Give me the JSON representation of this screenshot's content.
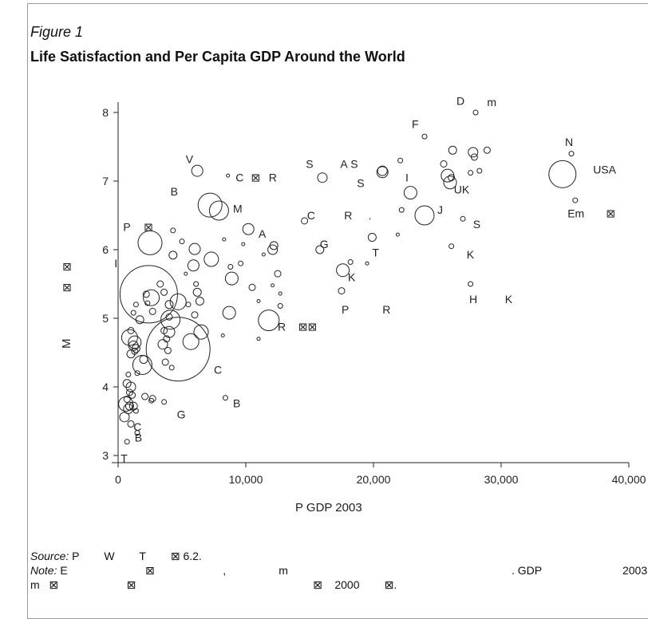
{
  "figure": {
    "label": "Figure 1",
    "title": "Life Satisfaction and Per Capita GDP Around the World"
  },
  "chart_data": {
    "type": "scatter",
    "xlabel": "P          GDP   2003",
    "ylabel": "M",
    "xlim": [
      0,
      40000
    ],
    "ylim": [
      3,
      8
    ],
    "x_ticks": [
      0,
      10000,
      20000,
      30000,
      40000
    ],
    "x_tick_labels": [
      "0",
      "10,000",
      "20,000",
      "30,000",
      "40,000"
    ],
    "y_ticks": [
      3,
      4,
      5,
      6,
      7,
      8
    ],
    "y_tick_labels": [
      "3",
      "4",
      "5",
      "6",
      "7",
      "8"
    ],
    "grid": false,
    "marker": "hollow circle sized by population",
    "points": [
      {
        "x": 28000,
        "y": 8.0,
        "size": 3
      },
      {
        "x": 24000,
        "y": 7.65,
        "size": 3
      },
      {
        "x": 35500,
        "y": 7.4,
        "size": 3
      },
      {
        "x": 34800,
        "y": 7.1,
        "size": 17
      },
      {
        "x": 35800,
        "y": 6.72,
        "size": 3
      },
      {
        "x": 26200,
        "y": 7.45,
        "size": 5
      },
      {
        "x": 27800,
        "y": 7.42,
        "size": 6
      },
      {
        "x": 28900,
        "y": 7.45,
        "size": 4
      },
      {
        "x": 27900,
        "y": 7.35,
        "size": 4
      },
      {
        "x": 25500,
        "y": 7.25,
        "size": 4
      },
      {
        "x": 27600,
        "y": 7.12,
        "size": 3
      },
      {
        "x": 28300,
        "y": 7.15,
        "size": 3
      },
      {
        "x": 26100,
        "y": 7.05,
        "size": 4
      },
      {
        "x": 25800,
        "y": 7.08,
        "size": 8
      },
      {
        "x": 26000,
        "y": 6.98,
        "size": 8
      },
      {
        "x": 22900,
        "y": 6.83,
        "size": 8
      },
      {
        "x": 24000,
        "y": 6.5,
        "size": 12
      },
      {
        "x": 22100,
        "y": 7.3,
        "size": 3
      },
      {
        "x": 20700,
        "y": 7.15,
        "size": 6
      },
      {
        "x": 20700,
        "y": 7.13,
        "size": 7
      },
      {
        "x": 27000,
        "y": 6.45,
        "size": 3
      },
      {
        "x": 22200,
        "y": 6.58,
        "size": 3
      },
      {
        "x": 21900,
        "y": 6.22,
        "size": 2
      },
      {
        "x": 26100,
        "y": 6.05,
        "size": 3
      },
      {
        "x": 27600,
        "y": 5.5,
        "size": 3
      },
      {
        "x": 16000,
        "y": 7.05,
        "size": 6
      },
      {
        "x": 14600,
        "y": 6.42,
        "size": 4
      },
      {
        "x": 19900,
        "y": 6.18,
        "size": 5
      },
      {
        "x": 15800,
        "y": 6.0,
        "size": 5
      },
      {
        "x": 17600,
        "y": 5.7,
        "size": 8
      },
      {
        "x": 18200,
        "y": 5.82,
        "size": 3
      },
      {
        "x": 19500,
        "y": 5.8,
        "size": 2
      },
      {
        "x": 17500,
        "y": 5.4,
        "size": 4
      },
      {
        "x": 11800,
        "y": 4.97,
        "size": 13
      },
      {
        "x": 12200,
        "y": 6.06,
        "size": 5
      },
      {
        "x": 12100,
        "y": 6.0,
        "size": 6
      },
      {
        "x": 12500,
        "y": 5.65,
        "size": 4
      },
      {
        "x": 12100,
        "y": 5.48,
        "size": 2
      },
      {
        "x": 12700,
        "y": 5.36,
        "size": 2
      },
      {
        "x": 12700,
        "y": 5.18,
        "size": 3
      },
      {
        "x": 11000,
        "y": 4.7,
        "size": 2
      },
      {
        "x": 10200,
        "y": 6.3,
        "size": 7
      },
      {
        "x": 10500,
        "y": 5.45,
        "size": 4
      },
      {
        "x": 11400,
        "y": 5.93,
        "size": 2
      },
      {
        "x": 11000,
        "y": 5.25,
        "size": 2
      },
      {
        "x": 9600,
        "y": 5.8,
        "size": 3
      },
      {
        "x": 8800,
        "y": 5.75,
        "size": 3
      },
      {
        "x": 9800,
        "y": 6.08,
        "size": 2
      },
      {
        "x": 8900,
        "y": 5.58,
        "size": 8
      },
      {
        "x": 8700,
        "y": 5.08,
        "size": 8
      },
      {
        "x": 8600,
        "y": 7.08,
        "size": 2
      },
      {
        "x": 8400,
        "y": 3.84,
        "size": 3
      },
      {
        "x": 8300,
        "y": 6.15,
        "size": 2
      },
      {
        "x": 8200,
        "y": 4.75,
        "size": 2
      },
      {
        "x": 6200,
        "y": 7.15,
        "size": 7
      },
      {
        "x": 7200,
        "y": 6.65,
        "size": 15
      },
      {
        "x": 7900,
        "y": 6.57,
        "size": 12
      },
      {
        "x": 7300,
        "y": 5.86,
        "size": 9
      },
      {
        "x": 6000,
        "y": 6.01,
        "size": 7
      },
      {
        "x": 5900,
        "y": 5.77,
        "size": 7
      },
      {
        "x": 6100,
        "y": 5.5,
        "size": 3
      },
      {
        "x": 6200,
        "y": 5.38,
        "size": 5
      },
      {
        "x": 6400,
        "y": 5.25,
        "size": 5
      },
      {
        "x": 6000,
        "y": 5.05,
        "size": 4
      },
      {
        "x": 5500,
        "y": 5.2,
        "size": 3
      },
      {
        "x": 6500,
        "y": 4.8,
        "size": 9
      },
      {
        "x": 5700,
        "y": 4.66,
        "size": 10
      },
      {
        "x": 4700,
        "y": 4.55,
        "size": 40
      },
      {
        "x": 4700,
        "y": 5.24,
        "size": 10
      },
      {
        "x": 5300,
        "y": 5.65,
        "size": 2
      },
      {
        "x": 5000,
        "y": 6.12,
        "size": 3
      },
      {
        "x": 4300,
        "y": 6.28,
        "size": 3
      },
      {
        "x": 4300,
        "y": 5.92,
        "size": 5
      },
      {
        "x": 4100,
        "y": 4.98,
        "size": 12
      },
      {
        "x": 4000,
        "y": 5.02,
        "size": 4
      },
      {
        "x": 4000,
        "y": 4.8,
        "size": 7
      },
      {
        "x": 3600,
        "y": 4.82,
        "size": 4
      },
      {
        "x": 3800,
        "y": 4.7,
        "size": 4
      },
      {
        "x": 3500,
        "y": 4.62,
        "size": 6
      },
      {
        "x": 3900,
        "y": 4.53,
        "size": 4
      },
      {
        "x": 3700,
        "y": 4.36,
        "size": 4
      },
      {
        "x": 4200,
        "y": 4.28,
        "size": 3
      },
      {
        "x": 4000,
        "y": 5.2,
        "size": 5
      },
      {
        "x": 3600,
        "y": 5.38,
        "size": 4
      },
      {
        "x": 3300,
        "y": 5.5,
        "size": 4
      },
      {
        "x": 3600,
        "y": 3.78,
        "size": 3
      },
      {
        "x": 2400,
        "y": 5.35,
        "size": 36
      },
      {
        "x": 2500,
        "y": 6.1,
        "size": 15
      },
      {
        "x": 2600,
        "y": 5.3,
        "size": 10
      },
      {
        "x": 2700,
        "y": 5.1,
        "size": 4
      },
      {
        "x": 2200,
        "y": 5.35,
        "size": 4
      },
      {
        "x": 2300,
        "y": 5.22,
        "size": 3
      },
      {
        "x": 2000,
        "y": 4.4,
        "size": 5
      },
      {
        "x": 1900,
        "y": 4.32,
        "size": 12
      },
      {
        "x": 2100,
        "y": 3.86,
        "size": 4
      },
      {
        "x": 2700,
        "y": 3.83,
        "size": 4
      },
      {
        "x": 2600,
        "y": 3.8,
        "size": 3
      },
      {
        "x": 1700,
        "y": 4.98,
        "size": 5
      },
      {
        "x": 1400,
        "y": 5.2,
        "size": 3
      },
      {
        "x": 1200,
        "y": 5.08,
        "size": 3
      },
      {
        "x": 1300,
        "y": 4.65,
        "size": 8
      },
      {
        "x": 1000,
        "y": 4.82,
        "size": 4
      },
      {
        "x": 900,
        "y": 4.72,
        "size": 10
      },
      {
        "x": 1200,
        "y": 4.6,
        "size": 6
      },
      {
        "x": 1400,
        "y": 4.56,
        "size": 5
      },
      {
        "x": 1300,
        "y": 4.52,
        "size": 4
      },
      {
        "x": 1000,
        "y": 4.48,
        "size": 5
      },
      {
        "x": 1500,
        "y": 4.2,
        "size": 3
      },
      {
        "x": 800,
        "y": 4.18,
        "size": 3
      },
      {
        "x": 700,
        "y": 4.05,
        "size": 5
      },
      {
        "x": 1000,
        "y": 4.0,
        "size": 6
      },
      {
        "x": 900,
        "y": 3.92,
        "size": 4
      },
      {
        "x": 1100,
        "y": 3.88,
        "size": 4
      },
      {
        "x": 700,
        "y": 3.82,
        "size": 4
      },
      {
        "x": 600,
        "y": 3.75,
        "size": 9
      },
      {
        "x": 900,
        "y": 3.72,
        "size": 5
      },
      {
        "x": 1200,
        "y": 3.72,
        "size": 5
      },
      {
        "x": 1400,
        "y": 3.65,
        "size": 3
      },
      {
        "x": 800,
        "y": 3.68,
        "size": 6
      },
      {
        "x": 500,
        "y": 3.56,
        "size": 6
      },
      {
        "x": 1000,
        "y": 3.46,
        "size": 4
      },
      {
        "x": 1500,
        "y": 3.33,
        "size": 3
      },
      {
        "x": 700,
        "y": 3.2,
        "size": 3
      }
    ],
    "labels": [
      {
        "text": "D",
        "x": 26500,
        "y": 8.17
      },
      {
        "text": "m",
        "x": 28900,
        "y": 8.15
      },
      {
        "text": "F",
        "x": 23000,
        "y": 7.83
      },
      {
        "text": "N",
        "x": 35000,
        "y": 7.57
      },
      {
        "text": "USA",
        "x": 37200,
        "y": 7.17
      },
      {
        "text": "Em",
        "x": 35200,
        "y": 6.53
      },
      {
        "text": "⊠",
        "x": 38200,
        "y": 6.53
      },
      {
        "text": "UK",
        "x": 26300,
        "y": 6.88
      },
      {
        "text": "J",
        "x": 25000,
        "y": 6.58
      },
      {
        "text": "S",
        "x": 27800,
        "y": 6.37
      },
      {
        "text": "K",
        "x": 27300,
        "y": 5.93
      },
      {
        "text": "H",
        "x": 27500,
        "y": 5.28
      },
      {
        "text": "K",
        "x": 30300,
        "y": 5.28
      },
      {
        "text": "I",
        "x": 22500,
        "y": 7.05
      },
      {
        "text": "S",
        "x": 18200,
        "y": 7.25
      },
      {
        "text": "A",
        "x": 17400,
        "y": 7.25
      },
      {
        "text": "S",
        "x": 18700,
        "y": 6.97
      },
      {
        "text": "C",
        "x": 14800,
        "y": 6.5
      },
      {
        "text": "R",
        "x": 17700,
        "y": 6.5
      },
      {
        "text": ".",
        "x": 19600,
        "y": 6.5
      },
      {
        "text": "G",
        "x": 15800,
        "y": 6.08
      },
      {
        "text": "T",
        "x": 19900,
        "y": 5.96
      },
      {
        "text": "K",
        "x": 18000,
        "y": 5.6
      },
      {
        "text": "P",
        "x": 17500,
        "y": 5.13
      },
      {
        "text": "R",
        "x": 20700,
        "y": 5.13
      },
      {
        "text": "V",
        "x": 5300,
        "y": 7.32
      },
      {
        "text": "C",
        "x": 9200,
        "y": 7.05
      },
      {
        "text": "⊠",
        "x": 10400,
        "y": 7.05
      },
      {
        "text": "R",
        "x": 11800,
        "y": 7.05
      },
      {
        "text": "S",
        "x": 14700,
        "y": 7.25
      },
      {
        "text": "B",
        "x": 4100,
        "y": 6.85
      },
      {
        "text": "M",
        "x": 9000,
        "y": 6.6
      },
      {
        "text": "P",
        "x": 400,
        "y": 6.33
      },
      {
        "text": "⊠",
        "x": 2000,
        "y": 6.33
      },
      {
        "text": "A",
        "x": 11000,
        "y": 6.23
      },
      {
        "text": "R",
        "x": 12500,
        "y": 4.88
      },
      {
        "text": "⊠⊠",
        "x": 14100,
        "y": 4.88
      },
      {
        "text": "C",
        "x": 7500,
        "y": 4.25
      },
      {
        "text": "G",
        "x": 4600,
        "y": 3.6
      },
      {
        "text": "B",
        "x": 9000,
        "y": 3.76
      },
      {
        "text": "C",
        "x": 1200,
        "y": 3.42
      },
      {
        "text": "B",
        "x": 1300,
        "y": 3.26
      },
      {
        "text": "T",
        "x": 200,
        "y": 2.96
      },
      {
        "text": "I",
        "x": -300,
        "y": 5.8
      }
    ],
    "margin_labels": [
      "⊠",
      "⊠"
    ]
  },
  "notes": {
    "source_lead": "Source:",
    "source_text": " P        W        T        ⊠ 6.2.",
    "note_lead": "Note:",
    "note_text": " E                         ⊠                      ,                 m                                                                        . GDP                          2003 ⊠",
    "note_line3": "m   ⊠                      ⊠                                                         ⊠    2000        ⊠."
  }
}
